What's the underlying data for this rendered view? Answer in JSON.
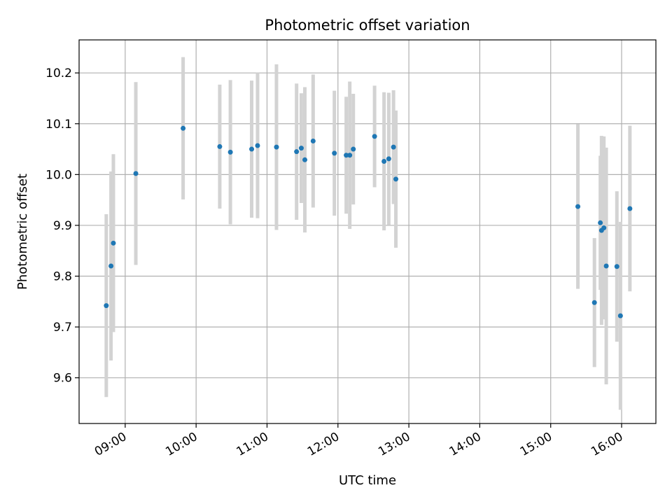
{
  "chart_data": {
    "type": "scatter",
    "title": "Photometric offset variation",
    "xlabel": "UTC time",
    "ylabel": "Photometric offset",
    "x_ticks": [
      "09:00",
      "10:00",
      "11:00",
      "12:00",
      "13:00",
      "14:00",
      "15:00",
      "16:00"
    ],
    "y_ticks": [
      9.6,
      9.7,
      9.8,
      9.9,
      10.0,
      10.1,
      10.2
    ],
    "xlim": [
      "08:21",
      "16:29"
    ],
    "ylim": [
      9.51,
      10.265
    ],
    "grid": true,
    "colors": {
      "point": "#1f77b4",
      "errorbar": "#d3d3d3",
      "grid": "#b0b0b0"
    },
    "points": [
      {
        "time": "08:44",
        "y": 9.742,
        "err": 0.18
      },
      {
        "time": "08:48",
        "y": 9.82,
        "err": 0.186
      },
      {
        "time": "08:50",
        "y": 9.865,
        "err": 0.175
      },
      {
        "time": "09:09",
        "y": 10.002,
        "err": 0.18
      },
      {
        "time": "09:49",
        "y": 10.091,
        "err": 0.14
      },
      {
        "time": "10:20",
        "y": 10.055,
        "err": 0.122
      },
      {
        "time": "10:29",
        "y": 10.044,
        "err": 0.142
      },
      {
        "time": "10:47",
        "y": 10.05,
        "err": 0.135
      },
      {
        "time": "10:52",
        "y": 10.057,
        "err": 0.143
      },
      {
        "time": "11:08",
        "y": 10.054,
        "err": 0.163
      },
      {
        "time": "11:25",
        "y": 10.045,
        "err": 0.134
      },
      {
        "time": "11:29",
        "y": 10.052,
        "err": 0.108
      },
      {
        "time": "11:32",
        "y": 10.029,
        "err": 0.143
      },
      {
        "time": "11:39",
        "y": 10.066,
        "err": 0.131
      },
      {
        "time": "11:57",
        "y": 10.042,
        "err": 0.123
      },
      {
        "time": "12:07",
        "y": 10.038,
        "err": 0.115
      },
      {
        "time": "12:10",
        "y": 10.038,
        "err": 0.145
      },
      {
        "time": "12:13",
        "y": 10.05,
        "err": 0.109
      },
      {
        "time": "12:31",
        "y": 10.075,
        "err": 0.1
      },
      {
        "time": "12:39",
        "y": 10.026,
        "err": 0.136
      },
      {
        "time": "12:43",
        "y": 10.031,
        "err": 0.13
      },
      {
        "time": "12:47",
        "y": 10.054,
        "err": 0.112
      },
      {
        "time": "12:49",
        "y": 9.991,
        "err": 0.135
      },
      {
        "time": "15:23",
        "y": 9.937,
        "err": 0.162
      },
      {
        "time": "15:37",
        "y": 9.748,
        "err": 0.127
      },
      {
        "time": "15:42",
        "y": 9.905,
        "err": 0.132
      },
      {
        "time": "15:43",
        "y": 9.89,
        "err": 0.186
      },
      {
        "time": "15:45",
        "y": 9.895,
        "err": 0.18
      },
      {
        "time": "15:47",
        "y": 9.82,
        "err": 0.233
      },
      {
        "time": "15:56",
        "y": 9.819,
        "err": 0.148
      },
      {
        "time": "15:59",
        "y": 9.722,
        "err": 0.185
      },
      {
        "time": "16:07",
        "y": 9.933,
        "err": 0.163
      }
    ]
  }
}
